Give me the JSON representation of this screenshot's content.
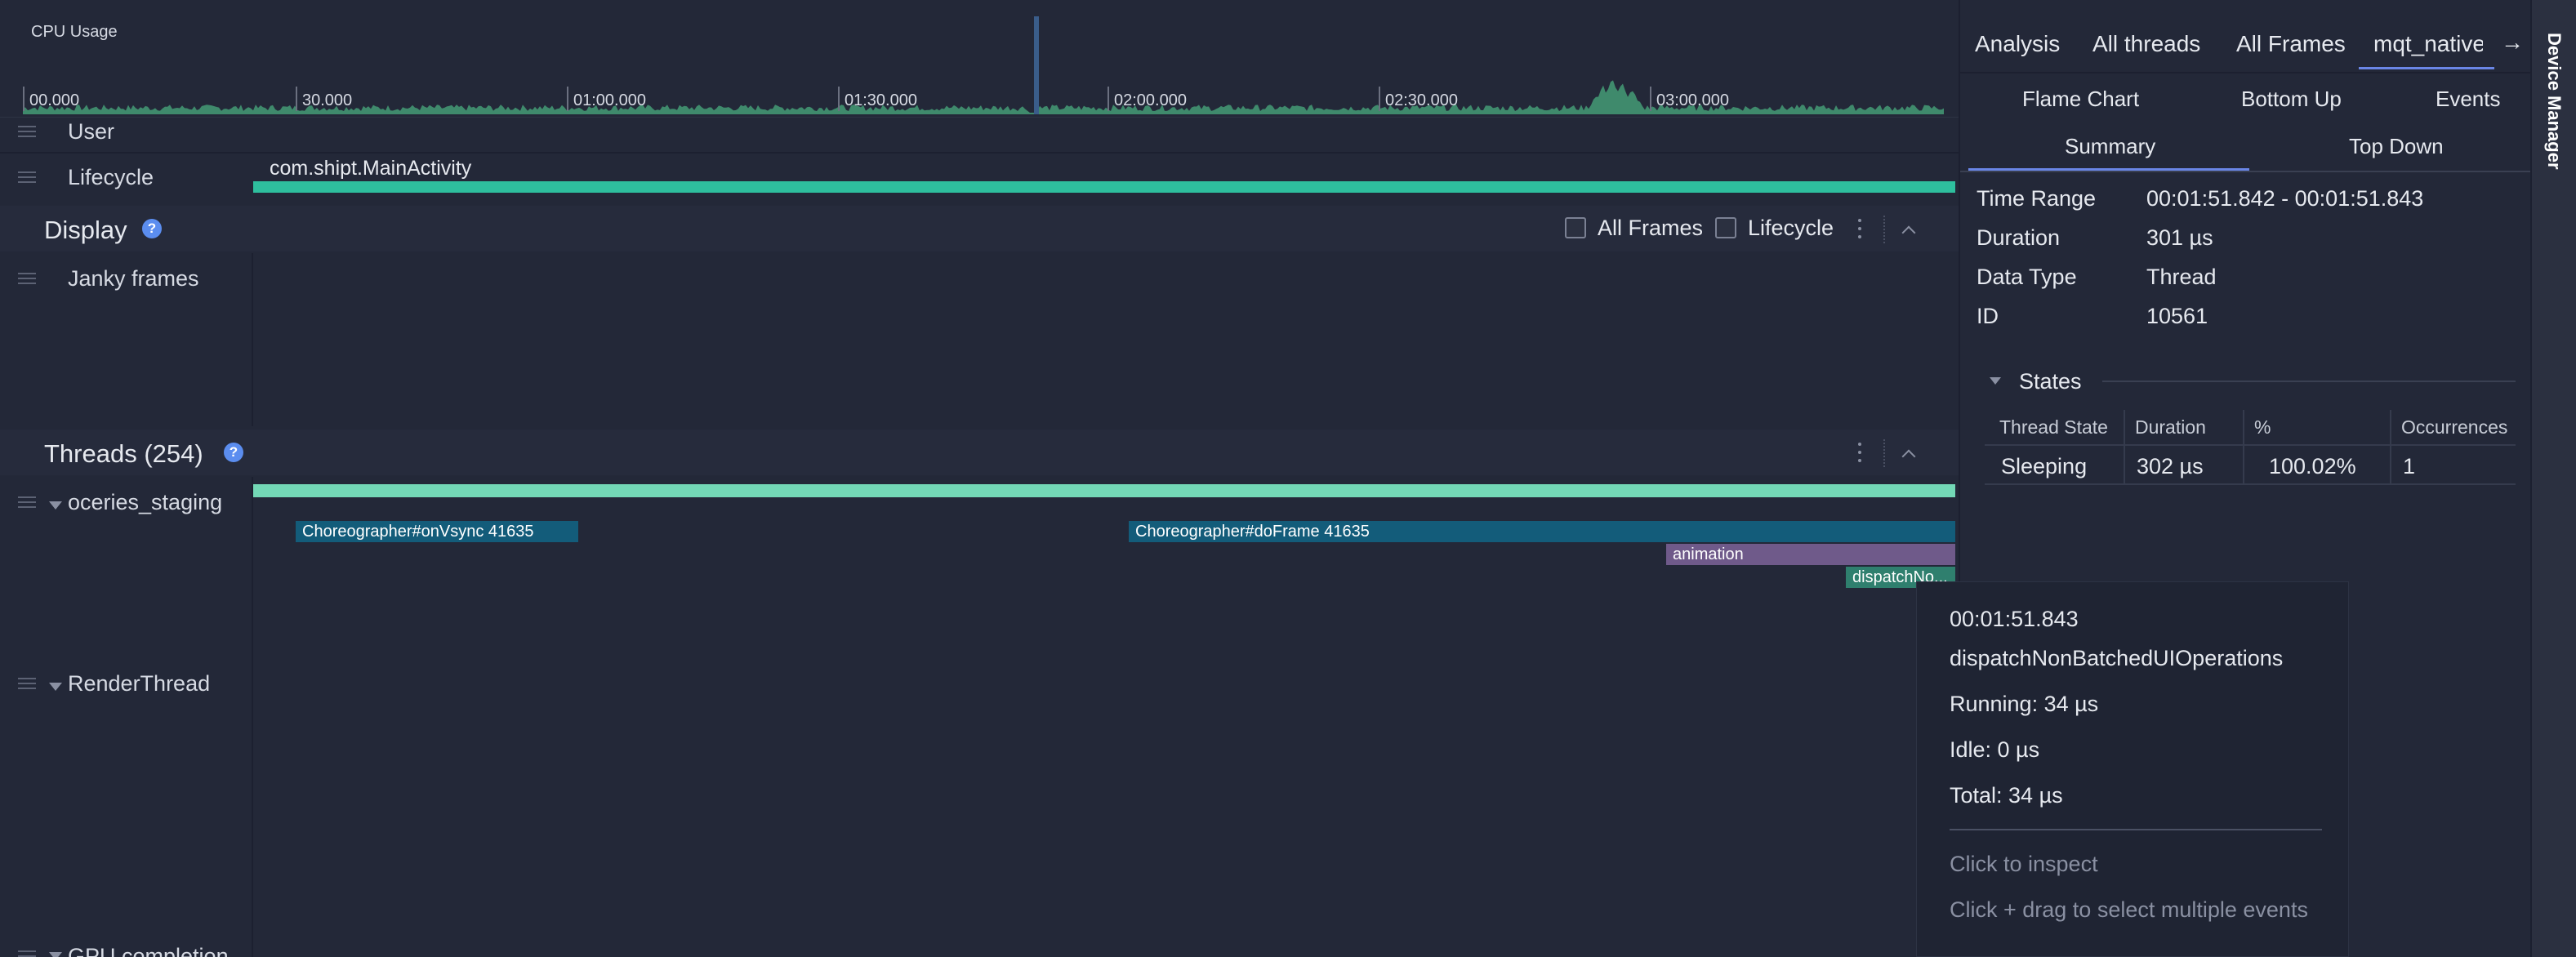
{
  "cpu_usage": {
    "label": "CPU Usage",
    "ticks": [
      "00.000",
      "30.000",
      "01:00.000",
      "01:30.000",
      "02:00.000",
      "02:30.000",
      "03:00.000"
    ]
  },
  "tracks": {
    "user_label": "User",
    "lifecycle_label": "Lifecycle",
    "lifecycle_activity": "com.shipt.MainActivity"
  },
  "display": {
    "title": "Display",
    "help": "?",
    "all_frames_label": "All Frames",
    "lifecycle_label": "Lifecycle",
    "janky_frames_label": "Janky frames"
  },
  "threads": {
    "title": "Threads (254)",
    "help": "?",
    "thread1_label": "oceries_staging",
    "thread2_label": "RenderThread",
    "next_track_label": "GPU completion",
    "slices": {
      "onvsync": "Choreographer#onVsync 41635",
      "doframe": "Choreographer#doFrame 41635",
      "animation": "animation",
      "dispatch": "dispatchNo..."
    }
  },
  "right_panel": {
    "tabs": [
      "Analysis",
      "All threads",
      "All Frames",
      "mqt_native_"
    ],
    "arrow": "→",
    "subtabs_row1": [
      "Flame Chart",
      "Bottom Up",
      "Events"
    ],
    "subtabs_row2": [
      "Summary",
      "Top Down"
    ],
    "summary": {
      "time_range_key": "Time Range",
      "time_range_val": "00:01:51.842 - 00:01:51.843",
      "duration_key": "Duration",
      "duration_val": "301 µs",
      "data_type_key": "Data Type",
      "data_type_val": "Thread",
      "id_key": "ID",
      "id_val": "10561"
    },
    "states": {
      "title": "States",
      "headers": [
        "Thread State",
        "Duration",
        "%",
        "Occurrences"
      ],
      "row": [
        "Sleeping",
        "302 µs",
        "100.02%",
        "1"
      ]
    }
  },
  "device_manager": "Device Manager",
  "tooltip": {
    "time": "00:01:51.843",
    "name": "dispatchNonBatchedUIOperations",
    "running": "Running: 34 µs",
    "idle": "Idle: 0 µs",
    "total": "Total: 34 µs",
    "hint1": "Click to inspect",
    "hint2": "Click + drag to select multiple events"
  },
  "colors": {
    "background": "#232838",
    "lifecycle_bar": "#2ebf9e",
    "thread_bar": "#73d8b6",
    "cpu_graph": "#3f8a6c",
    "slice_blue": "#135c7a",
    "slice_purple": "#6f5a8a",
    "slice_teal": "#2f7f6e",
    "tab_underline": "#6a86e6"
  }
}
